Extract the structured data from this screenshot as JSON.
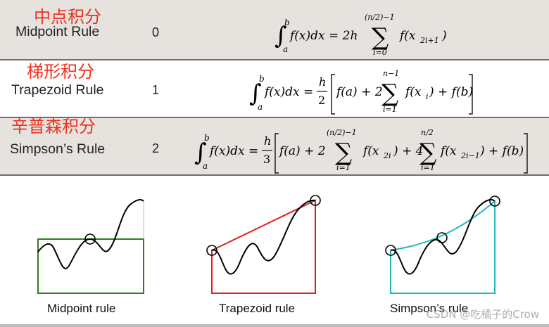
{
  "rows": [
    {
      "cn_label": "中点积分",
      "name": "Midpoint Rule",
      "order": "0",
      "formula": {
        "lhs": "f(x)dx = 2h",
        "int_lower": "a",
        "int_upper": "b",
        "sum_upper": "(n/2)−1",
        "sum_lower": "i=0",
        "term": "f(x",
        "term_sub": "2i+1",
        "term_close": ")"
      }
    },
    {
      "cn_label": "梯形积分",
      "name": "Trapezoid Rule",
      "order": "1",
      "formula": {
        "lhs": "f(x)dx =",
        "int_lower": "a",
        "int_upper": "b",
        "frac_num": "h",
        "frac_den": "2",
        "open": "f(a) + 2",
        "sum_upper": "n−1",
        "sum_lower": "i=1",
        "term": "f(x",
        "term_sub": "i",
        "term_close": ") + f(b)"
      }
    },
    {
      "cn_label": "辛普森积分",
      "name": "Simpson’s Rule",
      "order": "2",
      "formula": {
        "lhs": "f(x)dx =",
        "int_lower": "a",
        "int_upper": "b",
        "frac_num": "h",
        "frac_den": "3",
        "open": "f(a) + 2",
        "sum1_upper": "(n/2)−1",
        "sum1_lower": "i=1",
        "term1": "f(x",
        "term1_sub": "2i",
        "term1_close": ") + 4",
        "sum2_upper": "n/2",
        "sum2_lower": "i=1",
        "term2": "f(x",
        "term2_sub": "2i−1",
        "term2_close": ") + f(b)"
      }
    }
  ],
  "captions": {
    "midpoint": "Midpoint rule",
    "trapezoid": "Trapezoid rule",
    "simpson": "Simpson’s rule"
  },
  "watermark": "CSDN @吃橘子的Crow",
  "colors": {
    "cn_label": "#f0301e",
    "row_shade": "#e6e3df",
    "midpoint_box": "#2e7d1f",
    "trapezoid_box": "#e0201a",
    "simpson_box": "#25b8b8",
    "curve": "#000000"
  }
}
